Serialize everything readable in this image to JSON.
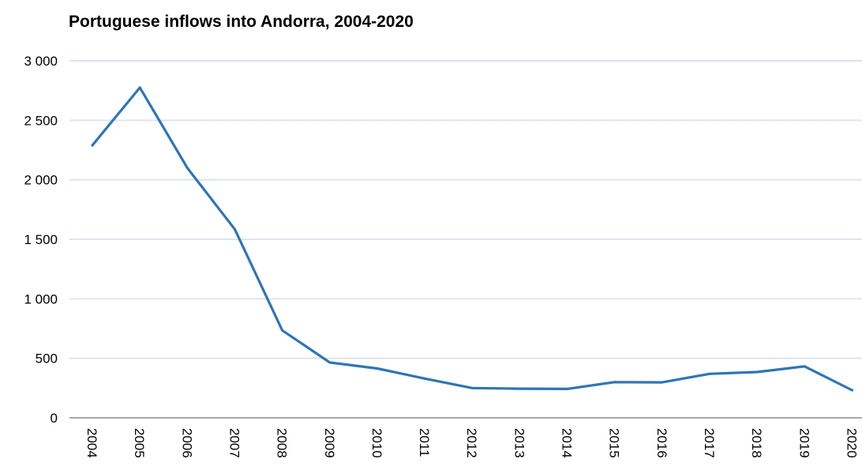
{
  "chart_data": {
    "type": "line",
    "title": "Portuguese inflows into Andorra, 2004-2020",
    "xlabel": "",
    "ylabel": "",
    "categories": [
      "2004",
      "2005",
      "2006",
      "2007",
      "2008",
      "2009",
      "2010",
      "2011",
      "2012",
      "2013",
      "2014",
      "2015",
      "2016",
      "2017",
      "2018",
      "2019",
      "2020"
    ],
    "y_tick_labels": [
      "0",
      "500",
      "1 000",
      "1 500",
      "2 000",
      "2 500",
      "3 000"
    ],
    "ylim": [
      0,
      3000
    ],
    "grid": true,
    "legend": "none",
    "series": [
      {
        "color": "#2e75b6",
        "values": [
          2290,
          2775,
          2100,
          1585,
          735,
          465,
          415,
          330,
          250,
          245,
          243,
          300,
          298,
          370,
          385,
          432,
          232
        ]
      }
    ]
  }
}
